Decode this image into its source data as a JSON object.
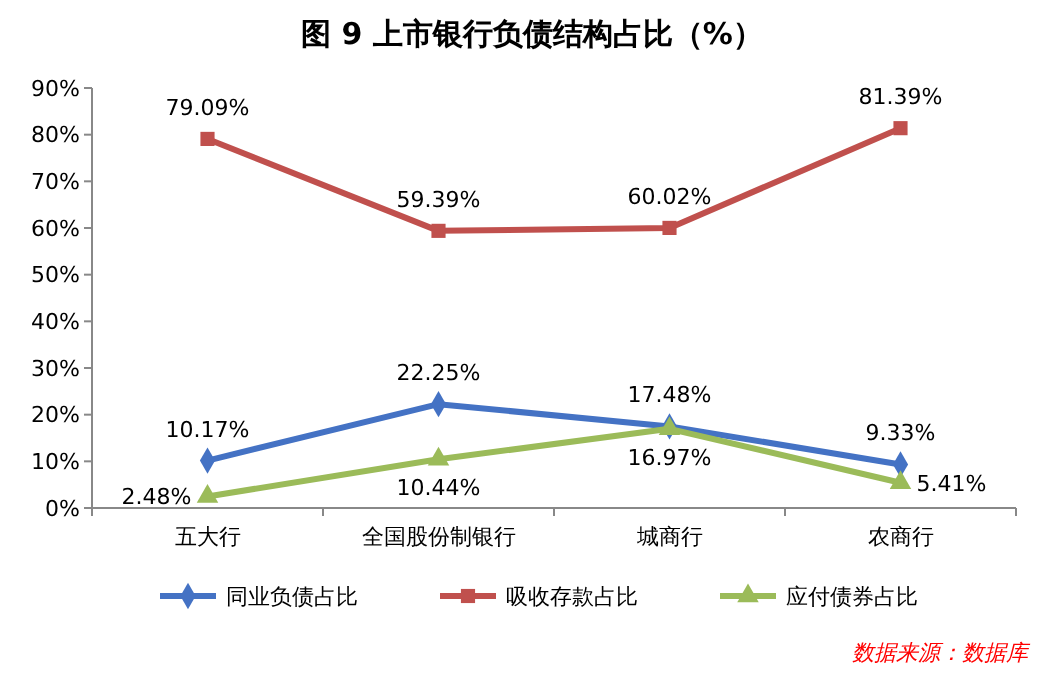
{
  "chart_data": {
    "type": "line",
    "title": "图 9  上市银行负债结构占比（%）",
    "categories": [
      "五大行",
      "全国股份制银行",
      "城商行",
      "农商行"
    ],
    "series": [
      {
        "name": "同业负债占比",
        "color": "#4472c4",
        "marker": "diamond",
        "values": [
          10.17,
          22.25,
          17.48,
          9.33
        ],
        "value_labels": [
          "10.17%",
          "22.25%",
          "17.48%",
          "9.33%"
        ]
      },
      {
        "name": "吸收存款占比",
        "color": "#c0504d",
        "marker": "square",
        "values": [
          79.09,
          59.39,
          60.02,
          81.39
        ],
        "value_labels": [
          "79.09%",
          "59.39%",
          "60.02%",
          "81.39%"
        ]
      },
      {
        "name": "应付债券占比",
        "color": "#9bbb59",
        "marker": "triangle",
        "values": [
          2.48,
          10.44,
          16.97,
          5.41
        ],
        "value_labels": [
          "2.48%",
          "10.44%",
          "16.97%",
          "5.41%"
        ]
      }
    ],
    "ylim": [
      0,
      90
    ],
    "yticks": [
      {
        "value": 0,
        "label": "0%"
      },
      {
        "value": 10,
        "label": "10%"
      },
      {
        "value": 20,
        "label": "20%"
      },
      {
        "value": 30,
        "label": "30%"
      },
      {
        "value": 40,
        "label": "40%"
      },
      {
        "value": 50,
        "label": "50%"
      },
      {
        "value": 60,
        "label": "60%"
      },
      {
        "value": 70,
        "label": "70%"
      },
      {
        "value": 80,
        "label": "80%"
      },
      {
        "value": 90,
        "label": "90%"
      }
    ],
    "grid": false,
    "legend": "bottom",
    "annotations": [
      "数据来源：数据库"
    ]
  }
}
